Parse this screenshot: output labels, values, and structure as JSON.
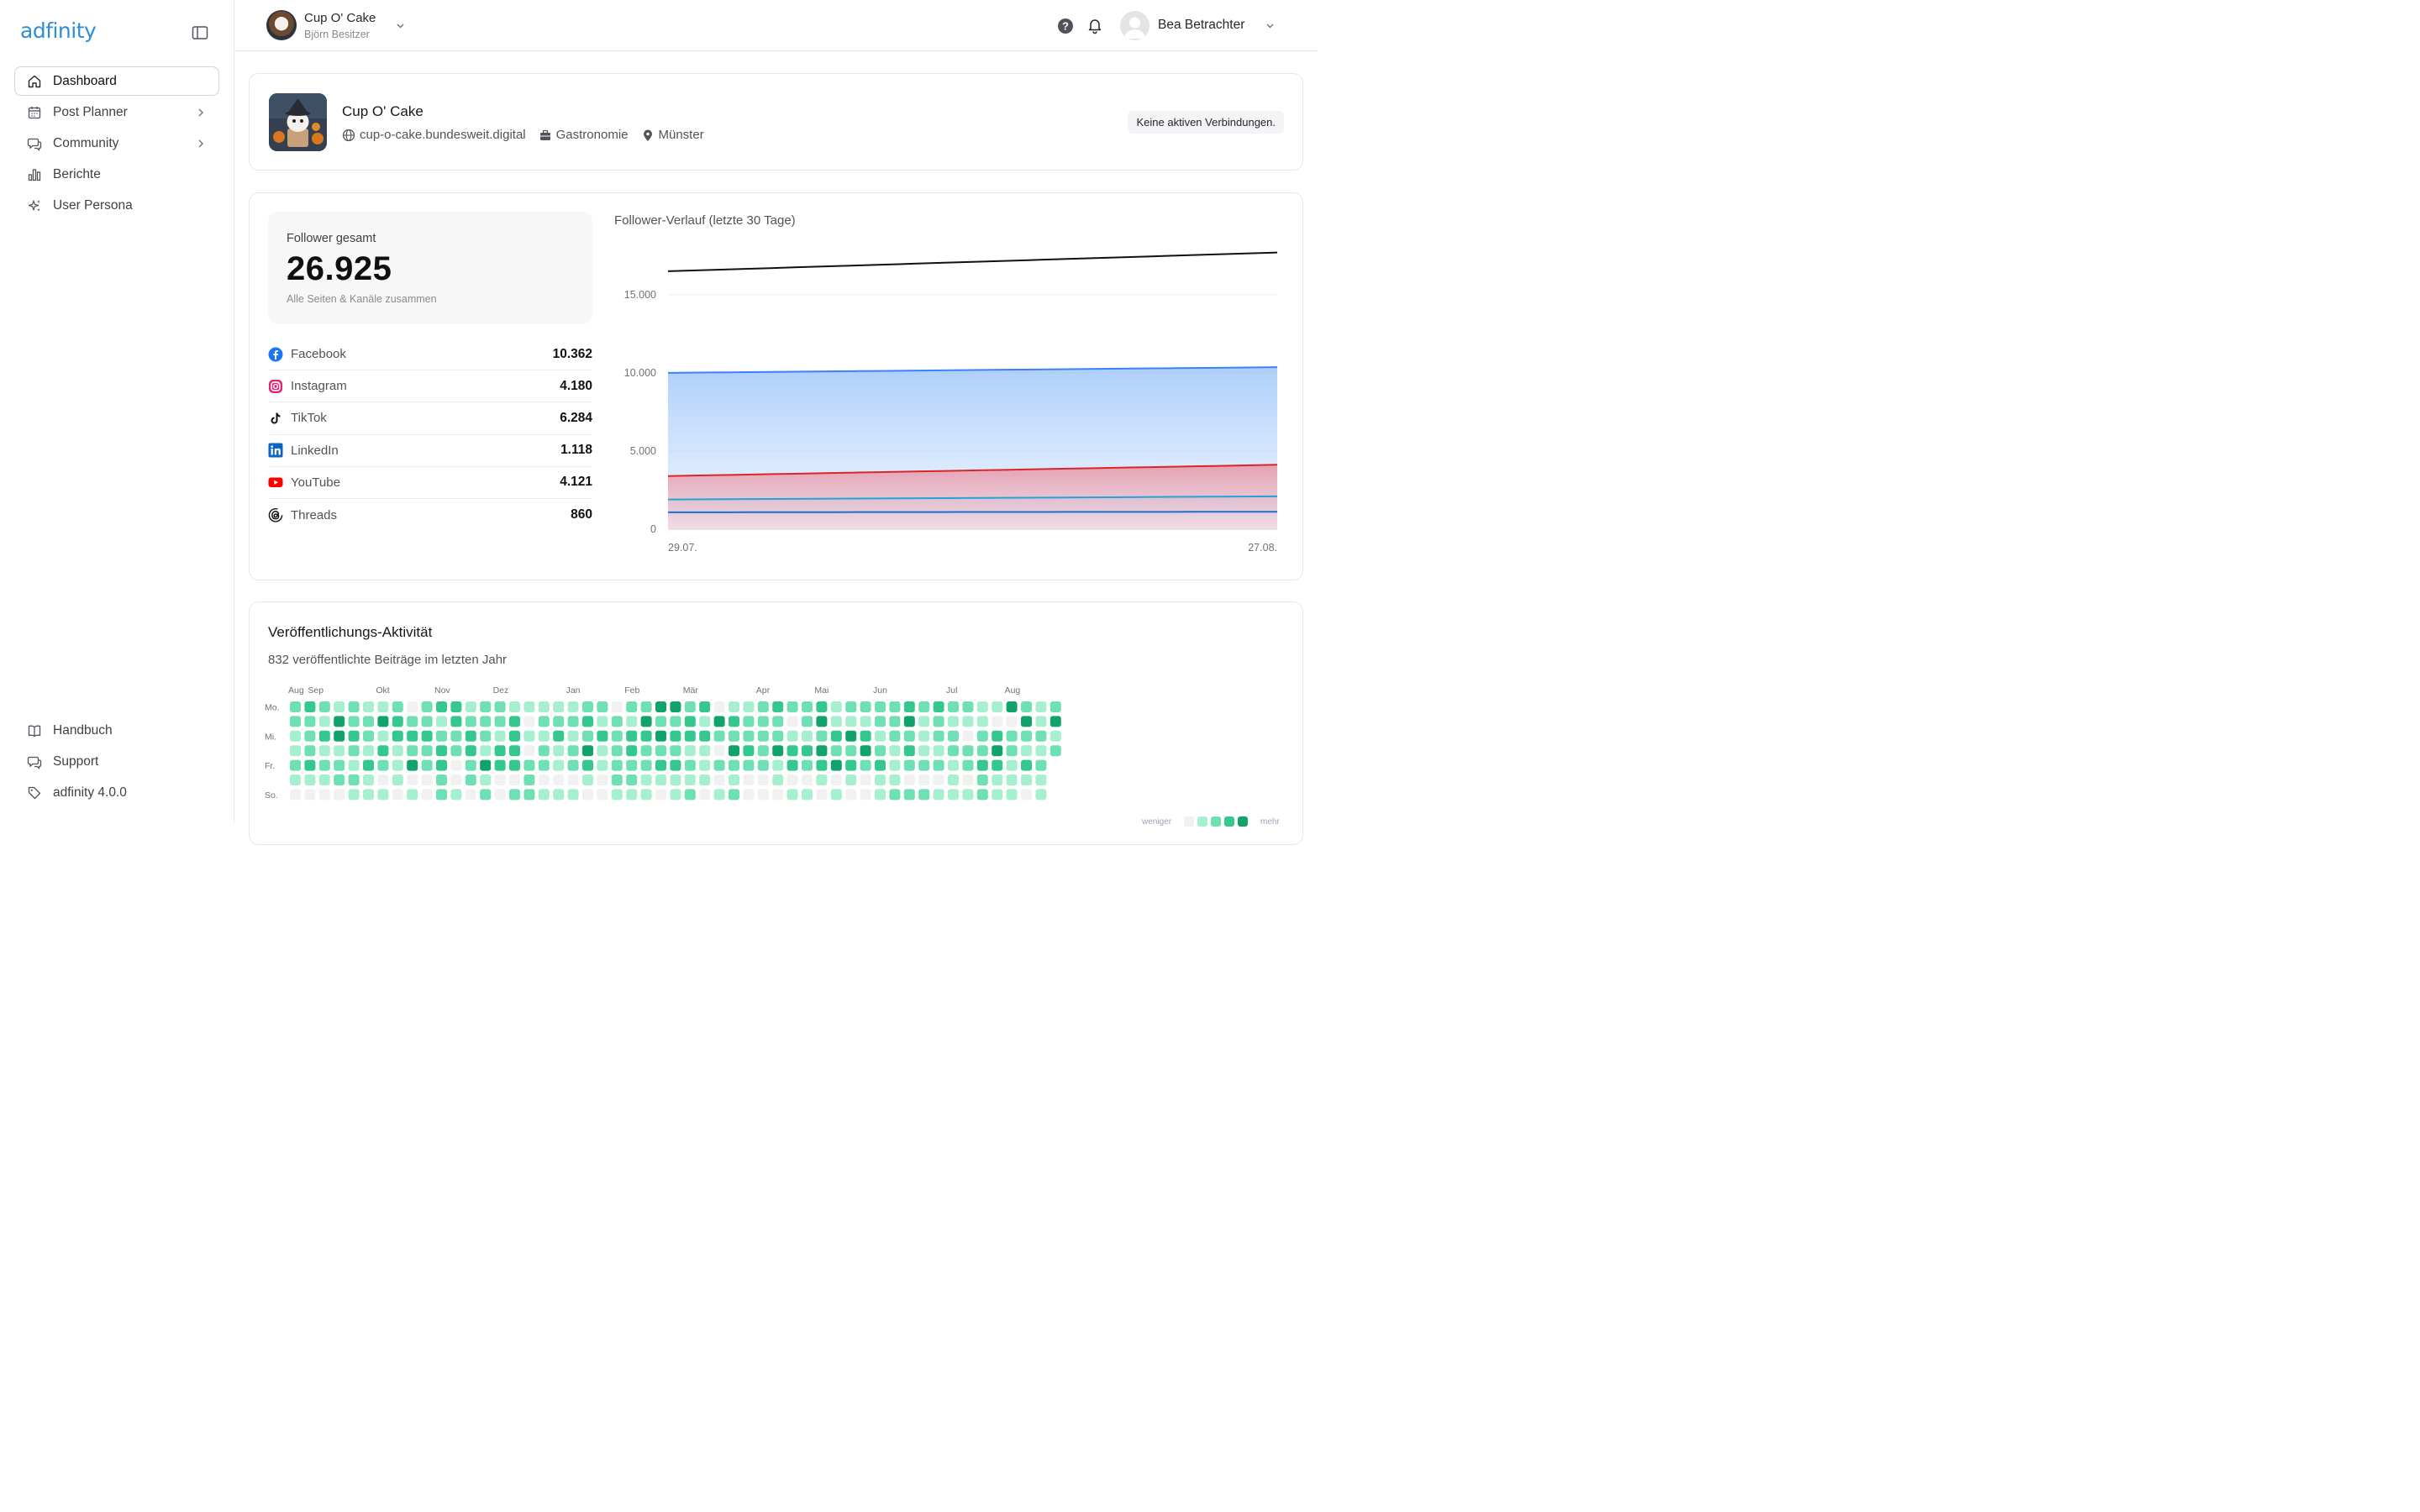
{
  "app": {
    "logo_text": "adfinity"
  },
  "sidebar": {
    "items": [
      {
        "label": "Dashboard",
        "icon": "home-icon",
        "active": true
      },
      {
        "label": "Post Planner",
        "icon": "calendar-icon",
        "has_submenu": true
      },
      {
        "label": "Community",
        "icon": "chat-icon",
        "has_submenu": true
      },
      {
        "label": "Berichte",
        "icon": "bar-chart-icon"
      },
      {
        "label": "User Persona",
        "icon": "sparkles-icon"
      }
    ],
    "bottom_items": [
      {
        "label": "Handbuch",
        "icon": "book-icon"
      },
      {
        "label": "Support",
        "icon": "support-icon"
      },
      {
        "label": "adfinity 4.0.0",
        "icon": "tag-icon"
      }
    ]
  },
  "topbar": {
    "account_name": "Cup O' Cake",
    "account_role": "Björn Besitzer",
    "user_name": "Bea Betrachter"
  },
  "profile": {
    "name": "Cup O' Cake",
    "website": "cup-o-cake.bundesweit.digital",
    "category": "Gastronomie",
    "location": "Münster",
    "connections_badge": "Keine aktiven Verbindungen."
  },
  "followers": {
    "total_label": "Follower gesamt",
    "total_value": "26.925",
    "total_sub": "Alle Seiten & Kanäle zusammen",
    "networks": [
      {
        "name": "Facebook",
        "value": "10.362",
        "icon": "facebook-icon",
        "color": "#1877f2"
      },
      {
        "name": "Instagram",
        "value": "4.180",
        "icon": "instagram-icon",
        "color": "#d62976"
      },
      {
        "name": "TikTok",
        "value": "6.284",
        "icon": "tiktok-icon",
        "color": "#000000"
      },
      {
        "name": "LinkedIn",
        "value": "1.118",
        "icon": "linkedin-icon",
        "color": "#0a66c2"
      },
      {
        "name": "YouTube",
        "value": "4.121",
        "icon": "youtube-icon",
        "color": "#ff0000"
      },
      {
        "name": "Threads",
        "value": "860",
        "icon": "threads-icon",
        "color": "#000000"
      }
    ]
  },
  "chart_data": {
    "type": "area",
    "title": "Follower-Verlauf (letzte 30 Tage)",
    "x_labels": [
      "29.07.",
      "27.08."
    ],
    "y_ticks": [
      "0",
      "5.000",
      "10.000",
      "15.000"
    ],
    "y_tick_values": [
      0,
      5000,
      10000,
      15000
    ],
    "ylim": [
      0,
      18000
    ],
    "grid": true,
    "series": [
      {
        "values_start_end": [
          16500,
          17700
        ],
        "color": "#111111",
        "fill": false
      },
      {
        "values_start_end": [
          10000,
          10362
        ],
        "color": "#3b82f6",
        "fill": true
      },
      {
        "values_start_end": [
          3400,
          4121
        ],
        "color": "#dc2626",
        "fill": true
      },
      {
        "values_start_end": [
          1900,
          2100
        ],
        "color": "#22a3d9",
        "fill": false
      },
      {
        "values_start_end": [
          1080,
          1118
        ],
        "color": "#1d6fc7",
        "fill": false
      }
    ]
  },
  "activity": {
    "title": "Veröffentlichungs-Aktivität",
    "subtitle": "832 veröffentlichte Beiträge im letzten Jahr",
    "months": [
      "Aug",
      "Sep",
      "Okt",
      "Nov",
      "Dez",
      "Jan",
      "Feb",
      "Mär",
      "Apr",
      "Mai",
      "Jun",
      "Jul",
      "Aug"
    ],
    "day_labels": [
      "Mo.",
      "Mi.",
      "Fr.",
      "So."
    ],
    "legend_less": "weniger",
    "legend_more": "mehr",
    "colors": [
      "#f1f1f1",
      "#a7f0cf",
      "#6ee0b3",
      "#34c88f",
      "#12a36d"
    ]
  }
}
